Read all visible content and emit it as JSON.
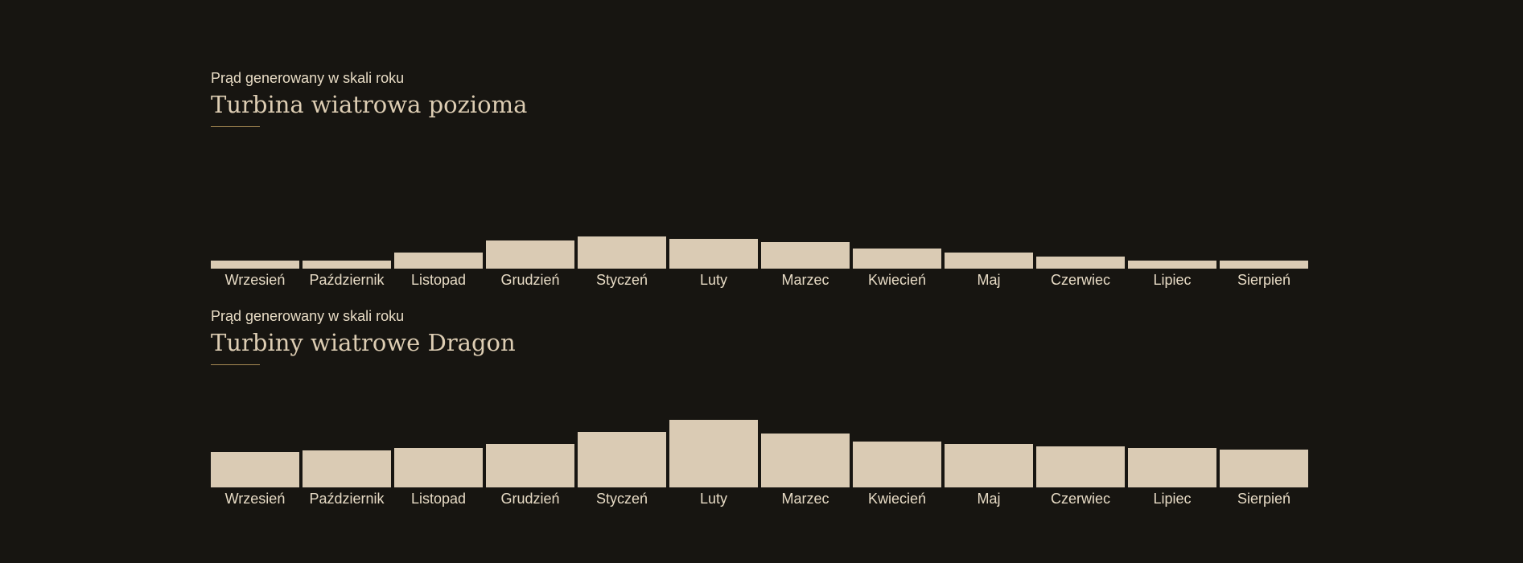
{
  "colors": {
    "background": "#171511",
    "bar": "#dacbb4",
    "text": "#e6dac4",
    "accent_rule": "#a88a54"
  },
  "chart_data": [
    {
      "type": "bar",
      "subtitle": "Prąd generowany w skali roku",
      "title": "Turbina wiatrowa pozioma",
      "categories": [
        "Wrzesień",
        "Październik",
        "Listopad",
        "Grudzień",
        "Styczeń",
        "Luty",
        "Marzec",
        "Kwiecień",
        "Maj",
        "Czerwiec",
        "Lipiec",
        "Sierpień"
      ],
      "values": [
        10,
        10,
        20,
        35,
        40,
        37,
        33,
        25,
        20,
        15,
        10,
        10
      ],
      "ylim": [
        0,
        100
      ],
      "grid": false
    },
    {
      "type": "bar",
      "subtitle": "Prąd generowany w skali roku",
      "title": "Turbiny wiatrowe Dragon",
      "categories": [
        "Wrzesień",
        "Październik",
        "Listopad",
        "Grudzień",
        "Styczeń",
        "Luty",
        "Marzec",
        "Kwiecień",
        "Maj",
        "Czerwiec",
        "Lipiec",
        "Sierpień"
      ],
      "values": [
        44,
        46,
        49,
        54,
        69,
        84,
        67,
        57,
        54,
        51,
        49,
        47
      ],
      "ylim": [
        0,
        100
      ],
      "grid": false
    }
  ]
}
